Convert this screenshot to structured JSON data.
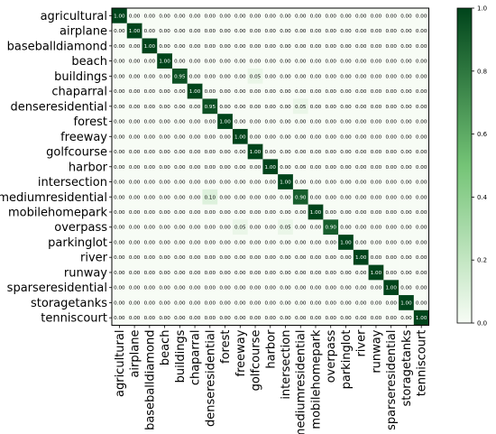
{
  "chart_data": {
    "type": "heatmap",
    "title": "",
    "xlabel": "",
    "ylabel": "",
    "classes": [
      "agricultural",
      "airplane",
      "baseballdiamond",
      "beach",
      "buildings",
      "chaparral",
      "denseresidential",
      "forest",
      "freeway",
      "golfcourse",
      "harbor",
      "intersection",
      "mediumresidential",
      "mobilehomepark",
      "overpass",
      "parkinglot",
      "river",
      "runway",
      "sparseresidential",
      "storagetanks",
      "tenniscourt"
    ],
    "values": [
      [
        1.0,
        0.0,
        0.0,
        0.0,
        0.0,
        0.0,
        0.0,
        0.0,
        0.0,
        0.0,
        0.0,
        0.0,
        0.0,
        0.0,
        0.0,
        0.0,
        0.0,
        0.0,
        0.0,
        0.0,
        0.0
      ],
      [
        0.0,
        1.0,
        0.0,
        0.0,
        0.0,
        0.0,
        0.0,
        0.0,
        0.0,
        0.0,
        0.0,
        0.0,
        0.0,
        0.0,
        0.0,
        0.0,
        0.0,
        0.0,
        0.0,
        0.0,
        0.0
      ],
      [
        0.0,
        0.0,
        1.0,
        0.0,
        0.0,
        0.0,
        0.0,
        0.0,
        0.0,
        0.0,
        0.0,
        0.0,
        0.0,
        0.0,
        0.0,
        0.0,
        0.0,
        0.0,
        0.0,
        0.0,
        0.0
      ],
      [
        0.0,
        0.0,
        0.0,
        1.0,
        0.0,
        0.0,
        0.0,
        0.0,
        0.0,
        0.0,
        0.0,
        0.0,
        0.0,
        0.0,
        0.0,
        0.0,
        0.0,
        0.0,
        0.0,
        0.0,
        0.0
      ],
      [
        0.0,
        0.0,
        0.0,
        0.0,
        0.95,
        0.0,
        0.0,
        0.0,
        0.0,
        0.05,
        0.0,
        0.0,
        0.0,
        0.0,
        0.0,
        0.0,
        0.0,
        0.0,
        0.0,
        0.0,
        0.0
      ],
      [
        0.0,
        0.0,
        0.0,
        0.0,
        0.0,
        1.0,
        0.0,
        0.0,
        0.0,
        0.0,
        0.0,
        0.0,
        0.0,
        0.0,
        0.0,
        0.0,
        0.0,
        0.0,
        0.0,
        0.0,
        0.0
      ],
      [
        0.0,
        0.0,
        0.0,
        0.0,
        0.0,
        0.0,
        0.95,
        0.0,
        0.0,
        0.0,
        0.0,
        0.0,
        0.05,
        0.0,
        0.0,
        0.0,
        0.0,
        0.0,
        0.0,
        0.0,
        0.0
      ],
      [
        0.0,
        0.0,
        0.0,
        0.0,
        0.0,
        0.0,
        0.0,
        1.0,
        0.0,
        0.0,
        0.0,
        0.0,
        0.0,
        0.0,
        0.0,
        0.0,
        0.0,
        0.0,
        0.0,
        0.0,
        0.0
      ],
      [
        0.0,
        0.0,
        0.0,
        0.0,
        0.0,
        0.0,
        0.0,
        0.0,
        1.0,
        0.0,
        0.0,
        0.0,
        0.0,
        0.0,
        0.0,
        0.0,
        0.0,
        0.0,
        0.0,
        0.0,
        0.0
      ],
      [
        0.0,
        0.0,
        0.0,
        0.0,
        0.0,
        0.0,
        0.0,
        0.0,
        0.0,
        1.0,
        0.0,
        0.0,
        0.0,
        0.0,
        0.0,
        0.0,
        0.0,
        0.0,
        0.0,
        0.0,
        0.0
      ],
      [
        0.0,
        0.0,
        0.0,
        0.0,
        0.0,
        0.0,
        0.0,
        0.0,
        0.0,
        0.0,
        1.0,
        0.0,
        0.0,
        0.0,
        0.0,
        0.0,
        0.0,
        0.0,
        0.0,
        0.0,
        0.0
      ],
      [
        0.0,
        0.0,
        0.0,
        0.0,
        0.0,
        0.0,
        0.0,
        0.0,
        0.0,
        0.0,
        0.0,
        1.0,
        0.0,
        0.0,
        0.0,
        0.0,
        0.0,
        0.0,
        0.0,
        0.0,
        0.0
      ],
      [
        0.0,
        0.0,
        0.0,
        0.0,
        0.0,
        0.0,
        0.1,
        0.0,
        0.0,
        0.0,
        0.0,
        0.0,
        0.9,
        0.0,
        0.0,
        0.0,
        0.0,
        0.0,
        0.0,
        0.0,
        0.0
      ],
      [
        0.0,
        0.0,
        0.0,
        0.0,
        0.0,
        0.0,
        0.0,
        0.0,
        0.0,
        0.0,
        0.0,
        0.0,
        0.0,
        1.0,
        0.0,
        0.0,
        0.0,
        0.0,
        0.0,
        0.0,
        0.0
      ],
      [
        0.0,
        0.0,
        0.0,
        0.0,
        0.0,
        0.0,
        0.0,
        0.0,
        0.05,
        0.0,
        0.0,
        0.05,
        0.0,
        0.0,
        0.9,
        0.0,
        0.0,
        0.0,
        0.0,
        0.0,
        0.0
      ],
      [
        0.0,
        0.0,
        0.0,
        0.0,
        0.0,
        0.0,
        0.0,
        0.0,
        0.0,
        0.0,
        0.0,
        0.0,
        0.0,
        0.0,
        0.0,
        1.0,
        0.0,
        0.0,
        0.0,
        0.0,
        0.0
      ],
      [
        0.0,
        0.0,
        0.0,
        0.0,
        0.0,
        0.0,
        0.0,
        0.0,
        0.0,
        0.0,
        0.0,
        0.0,
        0.0,
        0.0,
        0.0,
        0.0,
        1.0,
        0.0,
        0.0,
        0.0,
        0.0
      ],
      [
        0.0,
        0.0,
        0.0,
        0.0,
        0.0,
        0.0,
        0.0,
        0.0,
        0.0,
        0.0,
        0.0,
        0.0,
        0.0,
        0.0,
        0.0,
        0.0,
        0.0,
        1.0,
        0.0,
        0.0,
        0.0
      ],
      [
        0.0,
        0.0,
        0.0,
        0.0,
        0.0,
        0.0,
        0.0,
        0.0,
        0.0,
        0.0,
        0.0,
        0.0,
        0.0,
        0.0,
        0.0,
        0.0,
        0.0,
        0.0,
        1.0,
        0.0,
        0.0
      ],
      [
        0.0,
        0.0,
        0.0,
        0.0,
        0.0,
        0.0,
        0.0,
        0.0,
        0.0,
        0.0,
        0.0,
        0.0,
        0.0,
        0.0,
        0.0,
        0.0,
        0.0,
        0.0,
        0.0,
        1.0,
        0.0
      ],
      [
        0.0,
        0.0,
        0.0,
        0.0,
        0.0,
        0.0,
        0.0,
        0.0,
        0.0,
        0.0,
        0.0,
        0.0,
        0.0,
        0.0,
        0.0,
        0.0,
        0.0,
        0.0,
        0.0,
        0.0,
        1.0
      ]
    ],
    "value_range": [
      0,
      1
    ],
    "colorbar_ticks": [
      "0.0",
      "0.2",
      "0.4",
      "0.6",
      "0.8",
      "1.0"
    ],
    "colormap": {
      "low": "#f7fcf5",
      "mid": "#74c476",
      "high": "#00441b"
    },
    "grid": false,
    "legend": "colorbar-right"
  }
}
